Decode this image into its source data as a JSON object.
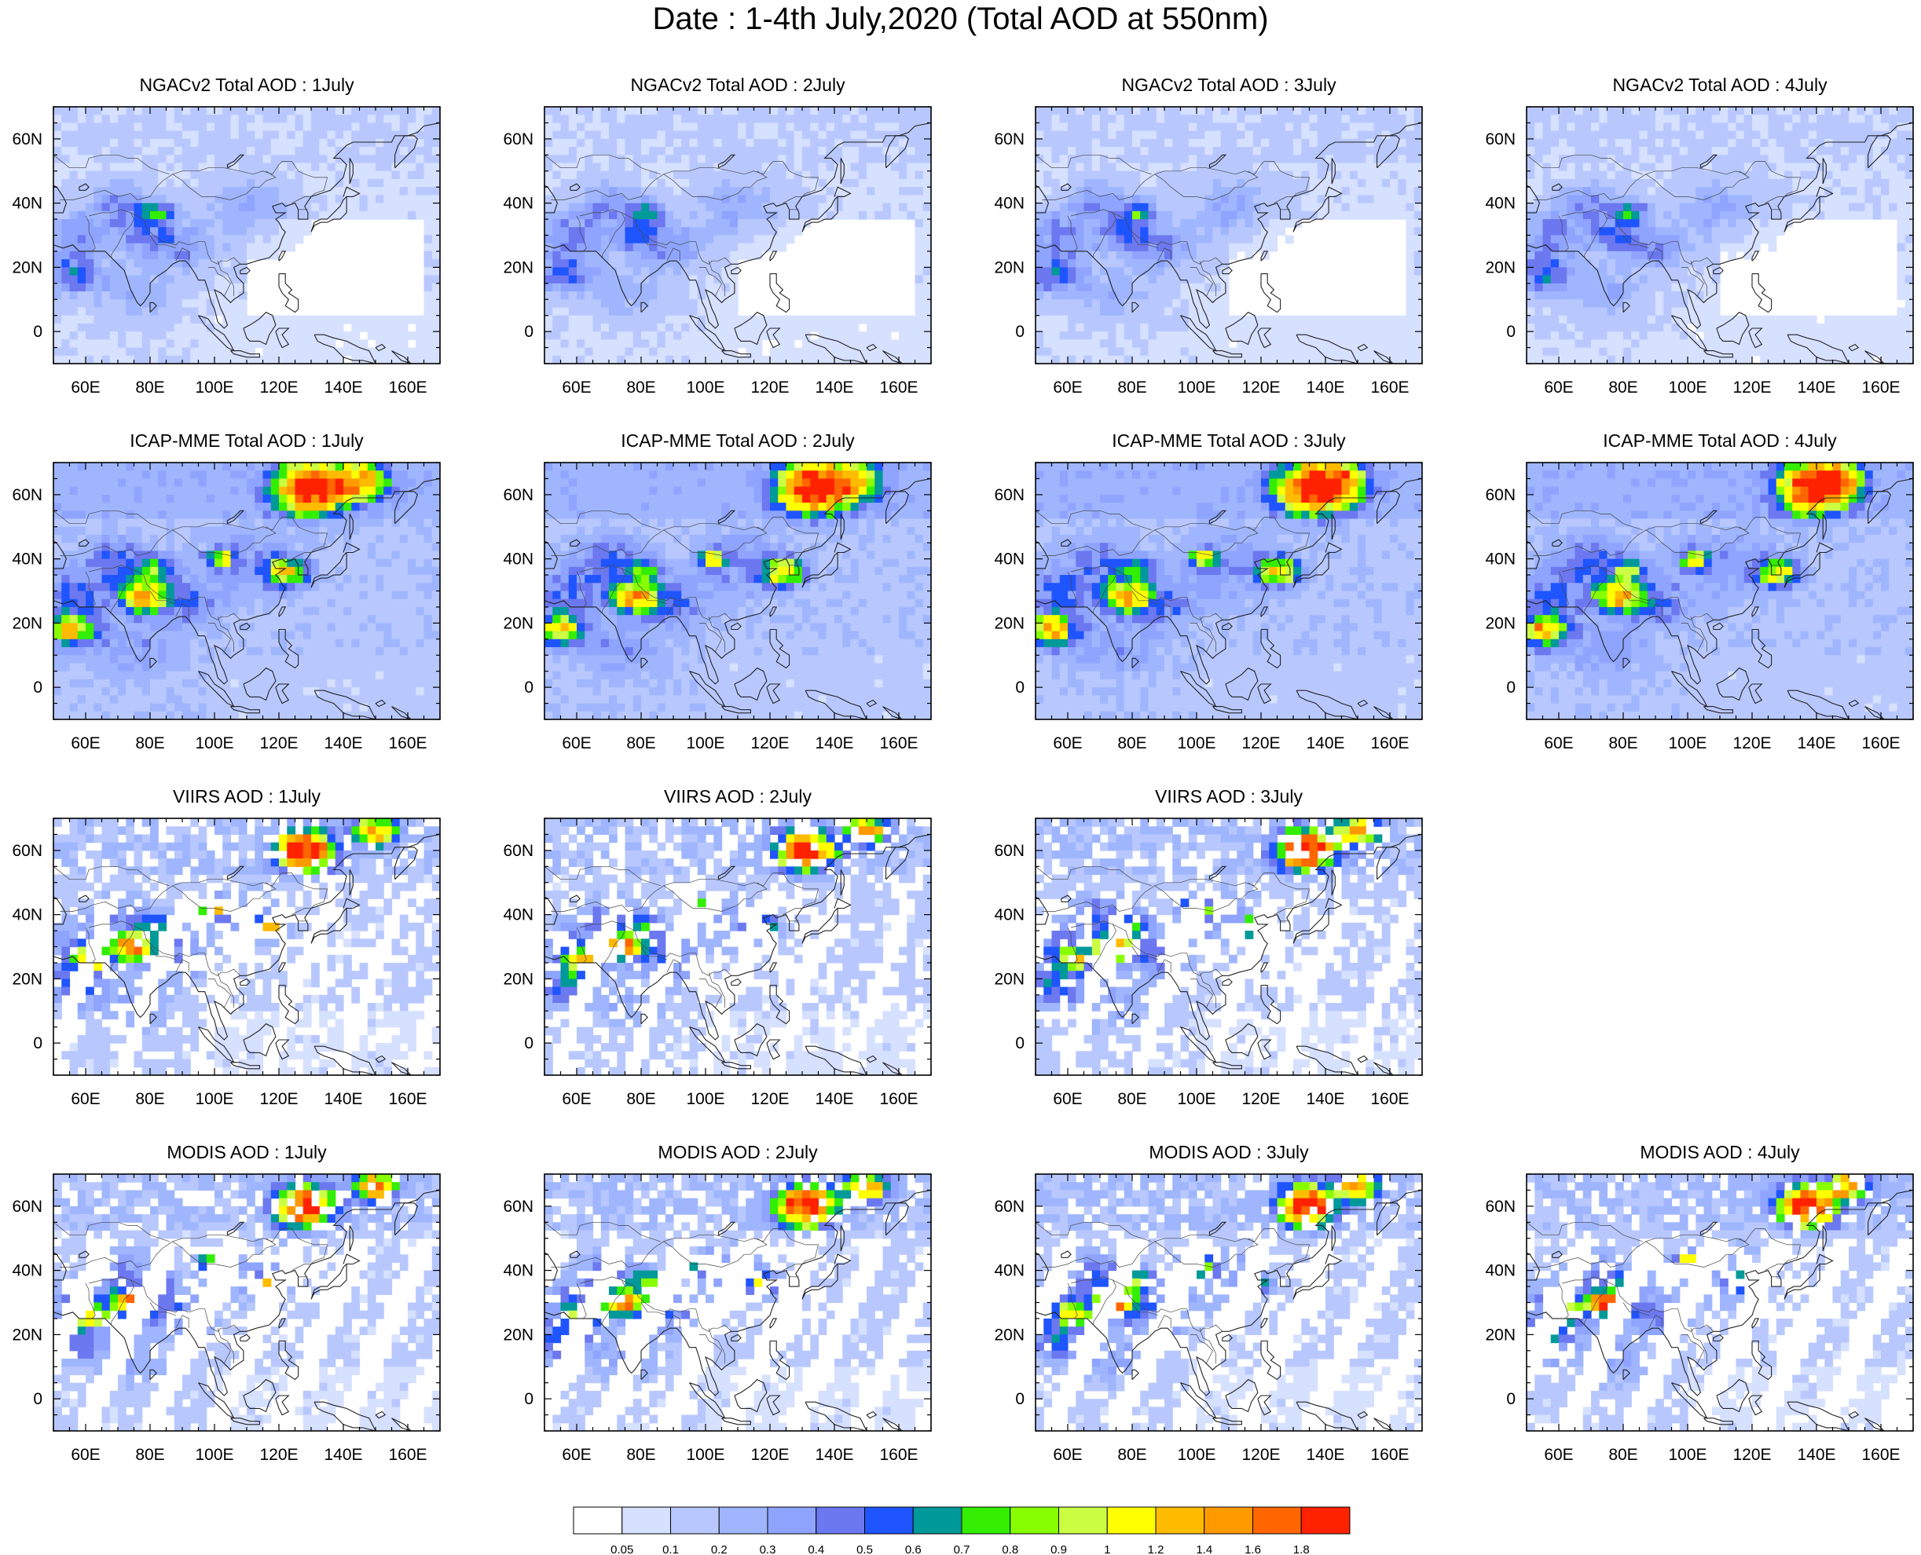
{
  "title": "Date : 1-4th July,2020 (Total AOD at 550nm)",
  "rows": [
    {
      "product": "NGACv2",
      "panels": [
        {
          "title": "NGACv2 Total AOD : 1July",
          "seed": 11
        },
        {
          "title": "NGACv2 Total AOD : 2July",
          "seed": 12
        },
        {
          "title": "NGACv2 Total AOD : 3July",
          "seed": 13
        },
        {
          "title": "NGACv2 Total AOD : 4July",
          "seed": 14
        }
      ]
    },
    {
      "product": "ICAP-MME",
      "panels": [
        {
          "title": "ICAP-MME Total AOD : 1July",
          "seed": 21
        },
        {
          "title": "ICAP-MME Total AOD : 2July",
          "seed": 22
        },
        {
          "title": "ICAP-MME Total AOD : 3July",
          "seed": 23
        },
        {
          "title": "ICAP-MME Total AOD : 4July",
          "seed": 24
        }
      ]
    },
    {
      "product": "VIIRS",
      "panels": [
        {
          "title": "VIIRS AOD : 1July",
          "seed": 31
        },
        {
          "title": "VIIRS AOD : 2July",
          "seed": 32
        },
        {
          "title": "VIIRS AOD : 3July",
          "seed": 33
        }
      ]
    },
    {
      "product": "MODIS",
      "panels": [
        {
          "title": "MODIS AOD : 1July",
          "seed": 41
        },
        {
          "title": "MODIS AOD : 2July",
          "seed": 42
        },
        {
          "title": "MODIS AOD : 3July",
          "seed": 43
        },
        {
          "title": "MODIS AOD : 4July",
          "seed": 44
        }
      ]
    }
  ],
  "x_ticks": [
    "60E",
    "80E",
    "100E",
    "120E",
    "140E",
    "160E"
  ],
  "y_ticks": [
    "60N",
    "40N",
    "20N",
    "0"
  ],
  "map_extent": {
    "lon": [
      50,
      170
    ],
    "lat": [
      -10,
      70
    ]
  },
  "colorbar": {
    "levels": [
      "0.05",
      "0.1",
      "0.2",
      "0.3",
      "0.4",
      "0.5",
      "0.6",
      "0.7",
      "0.8",
      "0.9",
      "1",
      "1.2",
      "1.4",
      "1.6",
      "1.8"
    ],
    "colors": [
      "#ffffff",
      "#d6e0ff",
      "#b8c8ff",
      "#9fb6ff",
      "#8ea4ff",
      "#6c78f0",
      "#1f55ff",
      "#009999",
      "#33ee00",
      "#88ff00",
      "#ccff44",
      "#ffff00",
      "#ffbb00",
      "#ff9900",
      "#ff6600",
      "#ff2200"
    ]
  }
}
